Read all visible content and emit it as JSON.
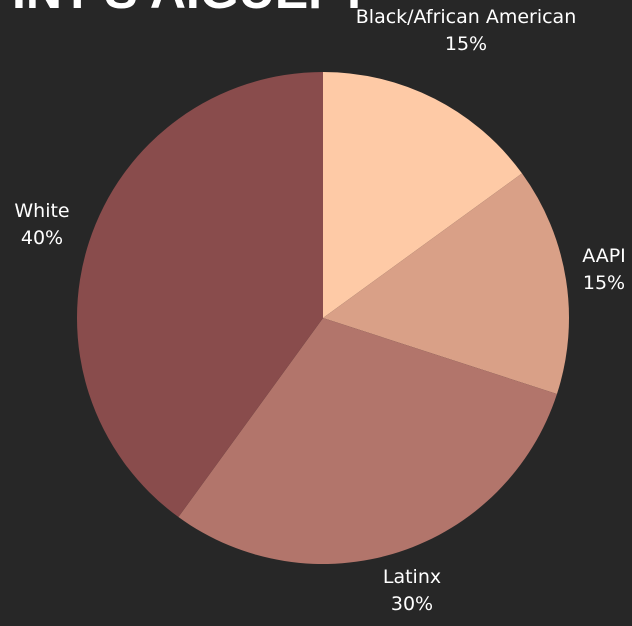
{
  "title_fragment": "INT'S AIGUEFT",
  "chart_data": {
    "type": "pie",
    "start": "12 o'clock",
    "direction": "clockwise",
    "legend": "none",
    "slices": [
      {
        "label": "Black/African American",
        "value": 15,
        "value_label": "15%",
        "color": "#fecaa6"
      },
      {
        "label": "AAPI",
        "value": 15,
        "value_label": "15%",
        "color": "#d9a087"
      },
      {
        "label": "Latinx",
        "value": 30,
        "value_label": "30%",
        "color": "#b2756b"
      },
      {
        "label": "White",
        "value": 40,
        "value_label": "40%",
        "color": "#894c4c"
      }
    ]
  }
}
